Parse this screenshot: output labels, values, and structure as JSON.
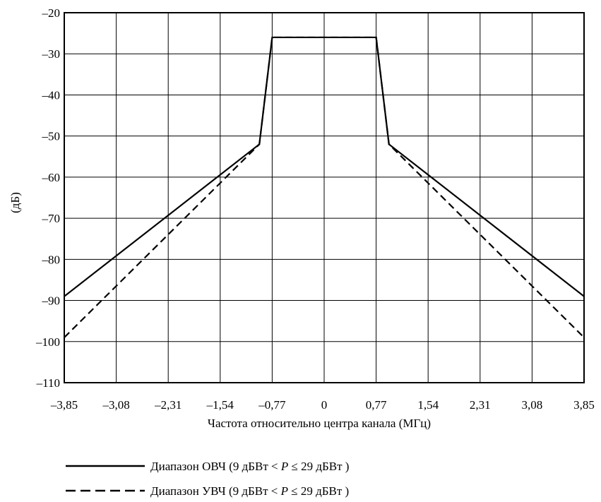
{
  "chart_data": {
    "type": "line",
    "title": "",
    "xlabel": "Частота относительно центра канала (МГц)",
    "ylabel": "(дБ)",
    "x_ticks": [
      "–3,85",
      "–3,08",
      "–2,31",
      "–1,54",
      "–0,77",
      "0",
      "0,77",
      "1,54",
      "2,31",
      "3,08",
      "3,85"
    ],
    "y_ticks": [
      "–20",
      "–30",
      "–40",
      "–50",
      "–60",
      "–70",
      "–80",
      "–90",
      "–100",
      "–110"
    ],
    "xlim": [
      -3.85,
      3.85
    ],
    "ylim": [
      -110,
      -20
    ],
    "grid": true,
    "legend_position": "bottom",
    "series": [
      {
        "name": "Диапазон ОВЧ (9 дБВт < P ≤ 29 дБВт)",
        "style": "solid",
        "color": "#000000",
        "x": [
          -3.85,
          -0.96,
          -0.77,
          0.77,
          0.96,
          3.85
        ],
        "y": [
          -89,
          -52,
          -26,
          -26,
          -52,
          -89
        ]
      },
      {
        "name": "Диапазон УВЧ (9 дБВт < P ≤ 29 дБВт)",
        "style": "dashed",
        "color": "#000000",
        "x": [
          -3.85,
          -0.96,
          -0.77,
          0.77,
          0.96,
          3.85
        ],
        "y": [
          -99,
          -52,
          -26,
          -26,
          -52,
          -99
        ]
      }
    ]
  },
  "legend": [
    {
      "prefix": "Диапазон ОВЧ (9 дБВт < ",
      "var": "P",
      "suffix": " ≤ 29 дБВт )"
    },
    {
      "prefix": "Диапазон УВЧ (9 дБВт < ",
      "var": "P",
      "suffix": " ≤ 29 дБВт )"
    }
  ]
}
